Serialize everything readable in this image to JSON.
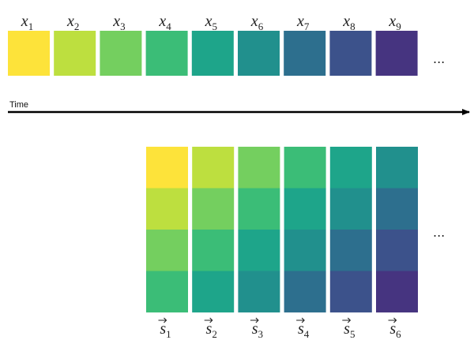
{
  "top_labels": [
    {
      "symbol": "x",
      "subscript": "1"
    },
    {
      "symbol": "x",
      "subscript": "2"
    },
    {
      "symbol": "x",
      "subscript": "3"
    },
    {
      "symbol": "x",
      "subscript": "4"
    },
    {
      "symbol": "x",
      "subscript": "5"
    },
    {
      "symbol": "x",
      "subscript": "6"
    },
    {
      "symbol": "x",
      "subscript": "7"
    },
    {
      "symbol": "x",
      "subscript": "8"
    },
    {
      "symbol": "x",
      "subscript": "9"
    }
  ],
  "top_ellipsis": "...",
  "time_label": "Time",
  "bottom_labels": [
    {
      "symbol": "s",
      "subscript": "1"
    },
    {
      "symbol": "s",
      "subscript": "2"
    },
    {
      "symbol": "s",
      "subscript": "3"
    },
    {
      "symbol": "s",
      "subscript": "4"
    },
    {
      "symbol": "s",
      "subscript": "5"
    },
    {
      "symbol": "s",
      "subscript": "6"
    }
  ],
  "bottom_ellipsis": "..."
}
